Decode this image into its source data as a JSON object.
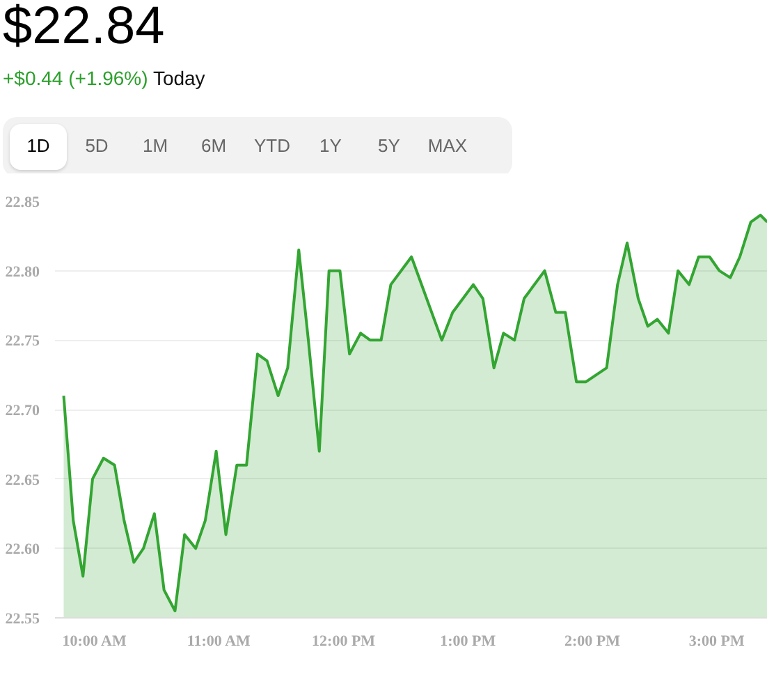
{
  "chart_data": {
    "type": "area",
    "title": "$22.84",
    "subtitle": "+$0.44 (+1.96%)",
    "annotations": [
      "Today",
      "1D",
      "5D",
      "1M",
      "6M",
      "YTD",
      "1Y",
      "5Y",
      "MAX"
    ],
    "x": [
      9.75,
      9.827,
      9.905,
      9.982,
      10.07,
      10.159,
      10.236,
      10.314,
      10.391,
      10.479,
      10.557,
      10.645,
      10.722,
      10.811,
      10.888,
      10.976,
      11.054,
      11.142,
      11.22,
      11.308,
      11.385,
      11.474,
      11.551,
      11.64,
      11.717,
      11.805,
      11.883,
      11.971,
      12.048,
      12.137,
      12.214,
      12.302,
      12.38,
      12.546,
      12.79,
      12.877,
      13.043,
      13.12,
      13.209,
      13.286,
      13.374,
      13.452,
      13.617,
      13.706,
      13.783,
      13.872,
      13.949,
      14.115,
      14.203,
      14.28,
      14.369,
      14.446,
      14.523,
      14.612,
      14.689,
      14.778,
      14.855,
      14.943,
      15.021,
      15.109,
      15.186,
      15.274,
      15.352,
      15.407
    ],
    "series": [
      {
        "color": "#33a532",
        "values": [
          22.71,
          22.62,
          22.58,
          22.65,
          22.665,
          22.66,
          22.62,
          22.59,
          22.6,
          22.625,
          22.57,
          22.555,
          22.61,
          22.6,
          22.62,
          22.67,
          22.61,
          22.66,
          22.66,
          22.74,
          22.735,
          22.71,
          22.73,
          22.815,
          22.75,
          22.67,
          22.8,
          22.8,
          22.74,
          22.755,
          22.75,
          22.75,
          22.79,
          22.81,
          22.75,
          22.77,
          22.79,
          22.78,
          22.73,
          22.755,
          22.75,
          22.78,
          22.8,
          22.77,
          22.77,
          22.72,
          22.72,
          22.73,
          22.79,
          22.82,
          22.78,
          22.76,
          22.765,
          22.755,
          22.8,
          22.79,
          22.81,
          22.81,
          22.8,
          22.795,
          22.81,
          22.835,
          22.84,
          22.835
        ]
      }
    ],
    "xlim": [
      9.68,
      15.41
    ],
    "ylim": [
      22.55,
      22.85
    ],
    "xticks": [
      {
        "value": 10,
        "label": "10:00 AM"
      },
      {
        "value": 11,
        "label": "11:00 AM"
      },
      {
        "value": 12,
        "label": "12:00 PM"
      },
      {
        "value": 13,
        "label": "1:00 PM"
      },
      {
        "value": 14,
        "label": "2:00 PM"
      },
      {
        "value": 15,
        "label": "3:00 PM"
      }
    ],
    "yticks": [
      {
        "value": 22.55,
        "label": "22.55"
      },
      {
        "value": 22.6,
        "label": "22.60"
      },
      {
        "value": 22.65,
        "label": "22.65"
      },
      {
        "value": 22.7,
        "label": "22.70"
      },
      {
        "value": 22.75,
        "label": "22.75"
      },
      {
        "value": 22.8,
        "label": "22.80"
      },
      {
        "value": 22.85,
        "label": "22.85"
      }
    ],
    "grid": "y"
  }
}
